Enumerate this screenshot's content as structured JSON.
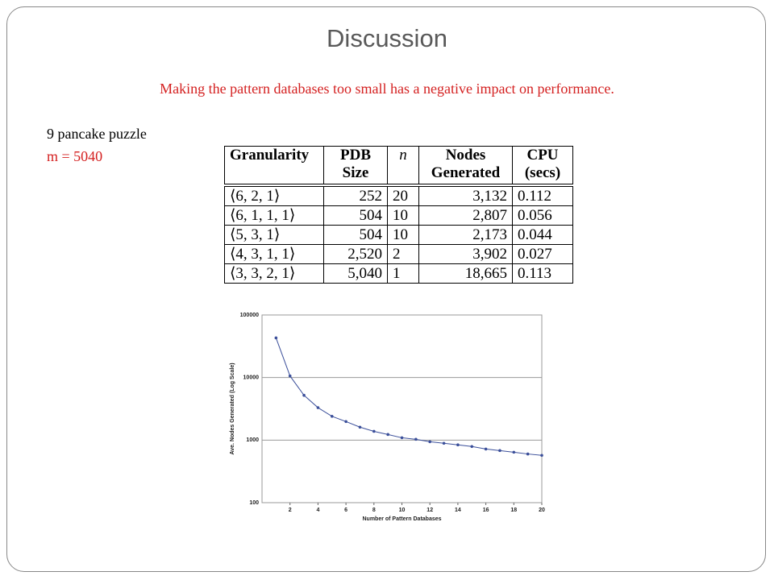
{
  "slide": {
    "title": "Discussion",
    "subtitle": "Making the pattern databases too small has a negative impact on performance.",
    "notes": [
      "9 pancake puzzle",
      "m = 5040"
    ]
  },
  "table": {
    "header": [
      "Granularity",
      "PDB Size",
      "n",
      "Nodes Generated",
      "CPU (secs)"
    ],
    "rows": [
      [
        "⟨6, 2, 1⟩",
        "252",
        "20",
        "3,132",
        "0.112"
      ],
      [
        "⟨6, 1, 1, 1⟩",
        "504",
        "10",
        "2,807",
        "0.056"
      ],
      [
        "⟨5, 3, 1⟩",
        "504",
        "10",
        "2,173",
        "0.044"
      ],
      [
        "⟨4, 3, 1, 1⟩",
        "2,520",
        "2",
        "3,902",
        "0.027"
      ],
      [
        "⟨3, 3, 2, 1⟩",
        "5,040",
        "1",
        "18,665",
        "0.113"
      ]
    ]
  },
  "chart_data": {
    "type": "line",
    "xlabel": "Number of Pattern Databases",
    "ylabel": "Ave. Nodes Generated (Log Scale)",
    "x": [
      1,
      2,
      3,
      4,
      5,
      6,
      7,
      8,
      9,
      10,
      11,
      12,
      13,
      14,
      15,
      16,
      17,
      18,
      19,
      20
    ],
    "series": [
      {
        "color": "#3b4f9a",
        "values": [
          43000,
          10600,
          5200,
          3300,
          2400,
          1980,
          1610,
          1380,
          1230,
          1090,
          1030,
          940,
          890,
          840,
          790,
          720,
          680,
          640,
          600,
          570
        ]
      }
    ],
    "xlim": [
      0,
      20
    ],
    "xticks": [
      2,
      4,
      6,
      8,
      10,
      12,
      14,
      16,
      18,
      20
    ],
    "ylim": [
      100,
      100000
    ],
    "yticks": [
      100,
      1000,
      10000,
      100000
    ],
    "log_y": true,
    "grid": true
  }
}
